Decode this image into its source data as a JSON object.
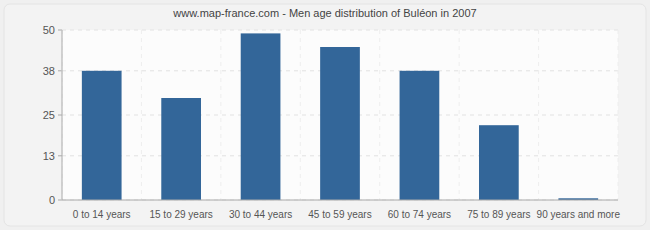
{
  "chart_data": {
    "type": "bar",
    "title": "www.map-france.com - Men age distribution of Buléon in 2007",
    "categories": [
      "0 to 14 years",
      "15 to 29 years",
      "30 to 44 years",
      "45 to 59 years",
      "60 to 74 years",
      "75 to 89 years",
      "90 years and more"
    ],
    "values": [
      38,
      30,
      49,
      45,
      38,
      22,
      0.5
    ],
    "color": "#336699",
    "ylim": [
      0,
      50
    ],
    "yticks": [
      0,
      13,
      25,
      38,
      50
    ],
    "grid": true
  }
}
